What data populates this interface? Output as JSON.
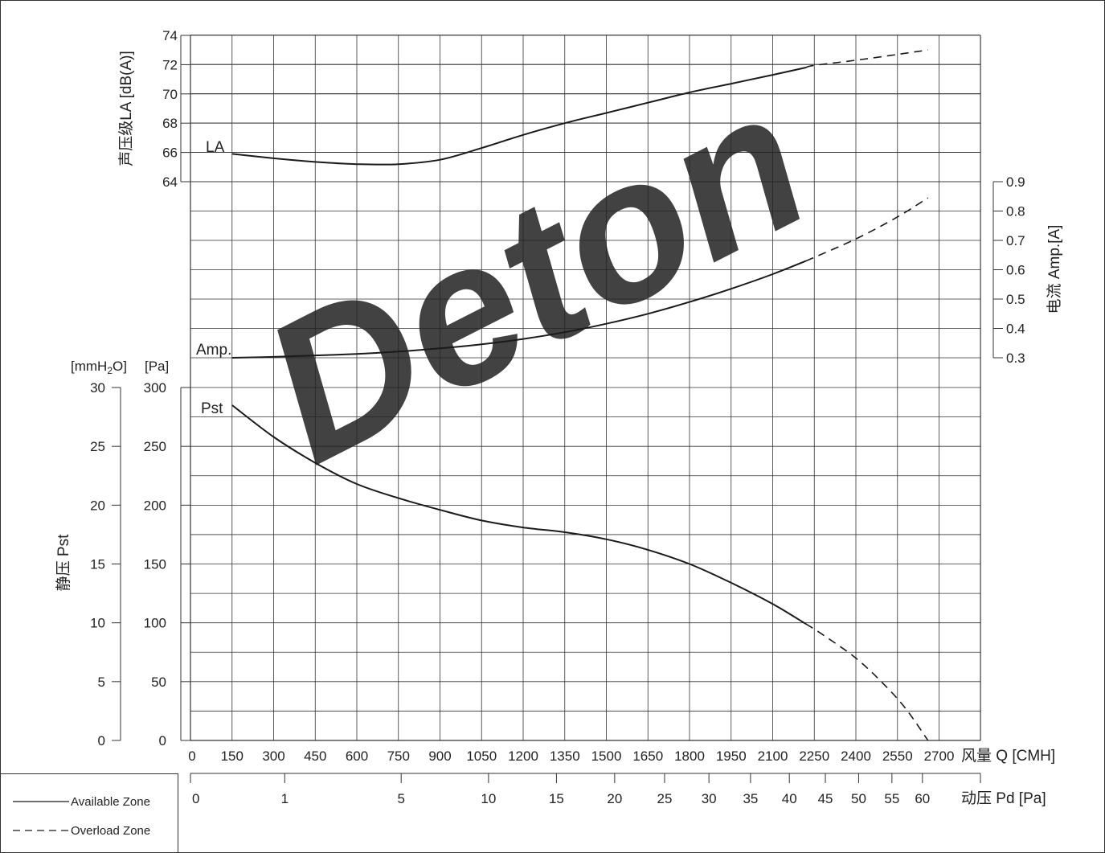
{
  "chart_data": {
    "type": "line",
    "watermark": "Deton",
    "x_axis": {
      "label": "风量 Q [CMH]",
      "ticks": [
        0,
        150,
        300,
        450,
        600,
        750,
        900,
        1050,
        1200,
        1350,
        1500,
        1650,
        1800,
        1950,
        2100,
        2250,
        2400,
        2550,
        2700
      ],
      "range": [
        0,
        2850
      ]
    },
    "pd_axis": {
      "label": "动压 Pd [Pa]",
      "ticks": [
        {
          "label": "0",
          "q": 0
        },
        {
          "label": "1",
          "q": 340
        },
        {
          "label": "5",
          "q": 760
        },
        {
          "label": "10",
          "q": 1075
        },
        {
          "label": "15",
          "q": 1320
        },
        {
          "label": "20",
          "q": 1530
        },
        {
          "label": "25",
          "q": 1710
        },
        {
          "label": "30",
          "q": 1870
        },
        {
          "label": "35",
          "q": 2020
        },
        {
          "label": "40",
          "q": 2160
        },
        {
          "label": "45",
          "q": 2290
        },
        {
          "label": "50",
          "q": 2410
        },
        {
          "label": "55",
          "q": 2530
        },
        {
          "label": "60",
          "q": 2640
        }
      ]
    },
    "la_axis": {
      "label": "声压级LA [dB(A)]",
      "ticks": [
        64,
        66,
        68,
        70,
        72,
        74
      ],
      "range": [
        64,
        74
      ]
    },
    "amp_axis": {
      "label": "电流 Amp.[A]",
      "ticks": [
        "0.3",
        "0.4",
        "0.5",
        "0.6",
        "0.7",
        "0.8",
        "0.9"
      ],
      "range": [
        0.3,
        0.9
      ]
    },
    "pst_pa_axis": {
      "unit_label": "[Pa]",
      "ticks": [
        0,
        50,
        100,
        150,
        200,
        250,
        300
      ],
      "range": [
        0,
        300
      ]
    },
    "pst_mm_axis": {
      "unit_label": "[mmH",
      "unit_sub": "2",
      "unit_tail": "O]",
      "ticks": [
        0,
        5,
        10,
        15,
        20,
        25,
        30
      ]
    },
    "pst_axis_title": "静压 Pst",
    "series": [
      {
        "name": "LA",
        "available": [
          [
            150,
            65.9
          ],
          [
            300,
            65.6
          ],
          [
            450,
            65.35
          ],
          [
            600,
            65.2
          ],
          [
            750,
            65.2
          ],
          [
            900,
            65.5
          ],
          [
            1050,
            66.3
          ],
          [
            1200,
            67.2
          ],
          [
            1350,
            68.0
          ],
          [
            1500,
            68.7
          ],
          [
            1650,
            69.4
          ],
          [
            1800,
            70.1
          ],
          [
            1950,
            70.7
          ],
          [
            2100,
            71.3
          ],
          [
            2220,
            71.8
          ]
        ],
        "overload": [
          [
            2220,
            71.8
          ],
          [
            2250,
            71.95
          ],
          [
            2400,
            72.3
          ],
          [
            2550,
            72.7
          ],
          [
            2660,
            73.0
          ]
        ]
      },
      {
        "name": "Amp.",
        "available": [
          [
            150,
            0.3
          ],
          [
            300,
            0.303
          ],
          [
            450,
            0.308
          ],
          [
            600,
            0.313
          ],
          [
            750,
            0.321
          ],
          [
            900,
            0.332
          ],
          [
            1050,
            0.346
          ],
          [
            1200,
            0.364
          ],
          [
            1350,
            0.387
          ],
          [
            1500,
            0.416
          ],
          [
            1650,
            0.45
          ],
          [
            1800,
            0.49
          ],
          [
            1950,
            0.535
          ],
          [
            2100,
            0.585
          ],
          [
            2220,
            0.63
          ]
        ],
        "overload": [
          [
            2220,
            0.63
          ],
          [
            2400,
            0.705
          ],
          [
            2550,
            0.78
          ],
          [
            2660,
            0.845
          ]
        ]
      },
      {
        "name": "Pst",
        "available": [
          [
            150,
            285
          ],
          [
            300,
            258
          ],
          [
            450,
            236
          ],
          [
            600,
            218
          ],
          [
            750,
            206
          ],
          [
            900,
            196
          ],
          [
            1050,
            187
          ],
          [
            1200,
            181
          ],
          [
            1350,
            177
          ],
          [
            1500,
            171
          ],
          [
            1650,
            162
          ],
          [
            1800,
            150
          ],
          [
            1950,
            134
          ],
          [
            2100,
            116
          ],
          [
            2220,
            99
          ]
        ],
        "overload": [
          [
            2220,
            99
          ],
          [
            2280,
            90
          ],
          [
            2400,
            70
          ],
          [
            2500,
            48
          ],
          [
            2580,
            27
          ],
          [
            2660,
            0
          ]
        ]
      }
    ],
    "legend": [
      {
        "label": "Available Zone",
        "style": "solid"
      },
      {
        "label": "Overload Zone",
        "style": "dashed"
      }
    ],
    "colors": {
      "line": "#1a1a1a",
      "grid": "#333333",
      "watermark": "#a9c4df"
    }
  }
}
